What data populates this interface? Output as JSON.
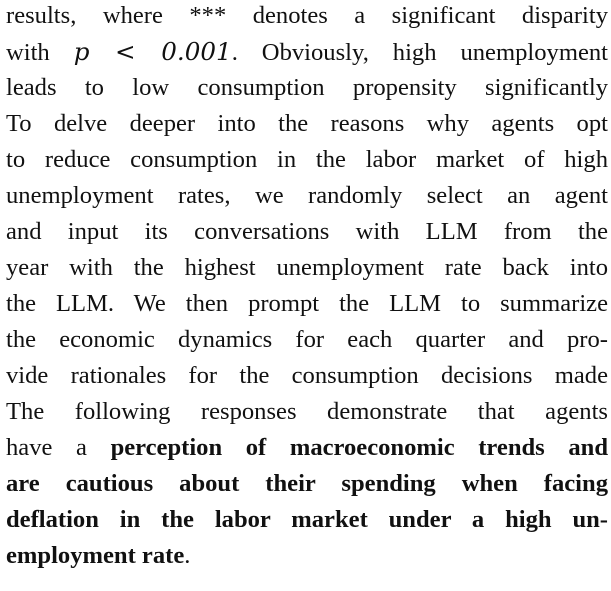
{
  "paragraph": {
    "lines": [
      {
        "parts": [
          "results, where *** denotes a significant disparity"
        ]
      },
      {
        "parts": [
          "with ",
          "p < 0.001",
          ". Obviously, high unemployment"
        ]
      },
      {
        "parts": [
          "leads to low consumption propensity significantly"
        ]
      },
      {
        "parts": [
          "To delve deeper into the reasons why agents opt"
        ]
      },
      {
        "parts": [
          "to reduce consumption in the labor market of high"
        ]
      },
      {
        "parts": [
          "unemployment rates, we randomly select an agent"
        ]
      },
      {
        "parts": [
          "and input its conversations with LLM from the"
        ]
      },
      {
        "parts": [
          "year with the highest unemployment rate back into"
        ]
      },
      {
        "parts": [
          "the LLM. We then prompt the LLM to summarize"
        ]
      },
      {
        "parts": [
          "the economic dynamics for each quarter and pro-"
        ]
      },
      {
        "parts": [
          "vide rationales for the consumption decisions made"
        ]
      },
      {
        "parts": [
          "The following responses demonstrate that agents"
        ]
      },
      {
        "parts": [
          "have a ",
          "perception of macroeconomic trends and"
        ]
      },
      {
        "parts": [
          "are cautious about their spending when facing"
        ]
      },
      {
        "parts": [
          "deflation in the labor market under a high un-"
        ]
      },
      {
        "parts": [
          "employment rate",
          "."
        ]
      }
    ]
  }
}
